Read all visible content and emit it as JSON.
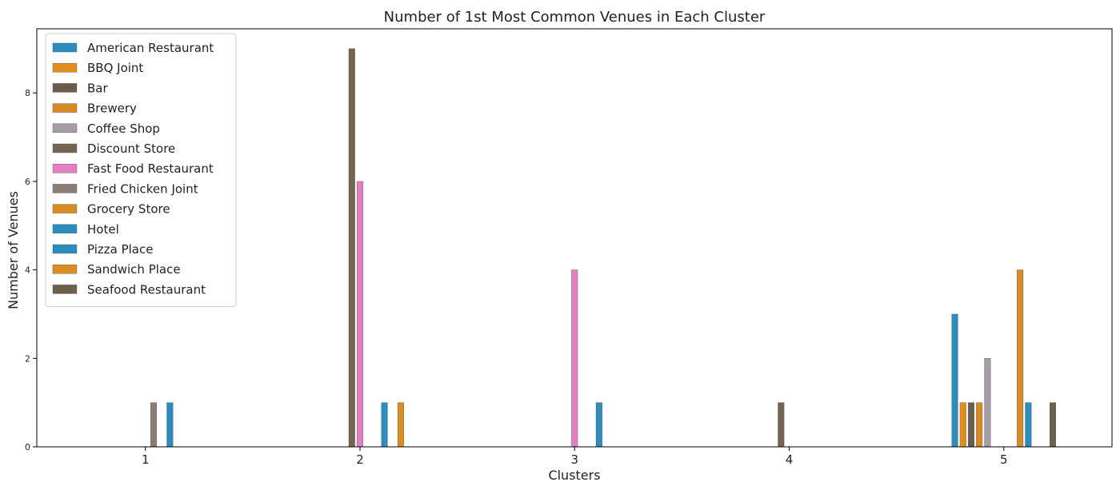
{
  "chart_data": {
    "type": "bar",
    "title": "Number of 1st Most Common Venues in Each Cluster",
    "xlabel": "Clusters",
    "ylabel": "Number of Venues",
    "categories": [
      "1",
      "2",
      "3",
      "4",
      "5"
    ],
    "ylim": [
      0,
      9.45
    ],
    "yticks": [
      0,
      2,
      4,
      6,
      8
    ],
    "grid": false,
    "legend_position": "top-left",
    "series": [
      {
        "name": "American Restaurant",
        "color": "#2b8cbe",
        "values": [
          0,
          0,
          0,
          0,
          3
        ]
      },
      {
        "name": "BBQ Joint",
        "color": "#e08f1f",
        "values": [
          0,
          0,
          0,
          0,
          1
        ]
      },
      {
        "name": "Bar",
        "color": "#6b5d4b",
        "values": [
          0,
          0,
          0,
          0,
          1
        ]
      },
      {
        "name": "Brewery",
        "color": "#d98a24",
        "values": [
          0,
          0,
          0,
          0,
          1
        ]
      },
      {
        "name": "Coffee Shop",
        "color": "#a59ca6",
        "values": [
          0,
          0,
          0,
          0,
          2
        ]
      },
      {
        "name": "Discount Store",
        "color": "#756450",
        "values": [
          0,
          9,
          0,
          1,
          0
        ]
      },
      {
        "name": "Fast Food Restaurant",
        "color": "#e47fc4",
        "values": [
          0,
          6,
          4,
          0,
          0
        ]
      },
      {
        "name": "Fried Chicken Joint",
        "color": "#8b7d74",
        "values": [
          1,
          0,
          0,
          0,
          0
        ]
      },
      {
        "name": "Grocery Store",
        "color": "#d98c22",
        "values": [
          0,
          0,
          0,
          0,
          4
        ]
      },
      {
        "name": "Hotel",
        "color": "#2a8cbf",
        "values": [
          1,
          1,
          1,
          0,
          1
        ]
      },
      {
        "name": "Pizza Place",
        "color": "#2b8dbf",
        "values": [
          0,
          0,
          0,
          0,
          0
        ]
      },
      {
        "name": "Sandwich Place",
        "color": "#dc8d21",
        "values": [
          0,
          1,
          0,
          0,
          0
        ]
      },
      {
        "name": "Seafood Restaurant",
        "color": "#6e5f4c",
        "values": [
          0,
          0,
          0,
          0,
          1
        ]
      }
    ]
  }
}
